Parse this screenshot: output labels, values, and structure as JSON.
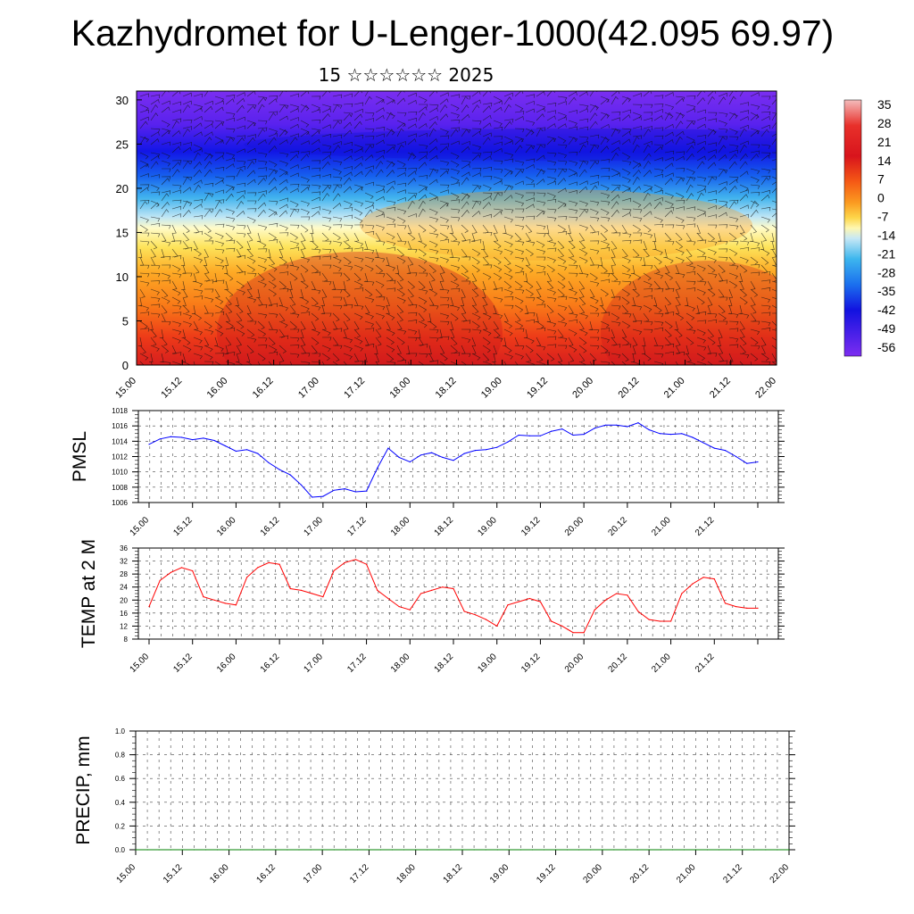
{
  "title": "Kazhydromet for U-Lenger-1000(42.095 69.97)",
  "subtitle": "15 ☆☆☆☆☆☆ 2025",
  "time_labels": [
    "15.00",
    "15.12",
    "16.00",
    "16.12",
    "17.00",
    "17.12",
    "18.00",
    "18.12",
    "19.00",
    "19.12",
    "20.00",
    "20.12",
    "21.00",
    "21.12",
    "22.00"
  ],
  "colorbar": {
    "labels": [
      "35",
      "28",
      "21",
      "14",
      "7",
      "0",
      "-7",
      "-14",
      "-21",
      "-28",
      "-35",
      "-42",
      "-49",
      "-56"
    ]
  },
  "chart_data": [
    {
      "type": "heatmap",
      "title": "",
      "xlabel": "",
      "ylabel": "",
      "x": [
        "15.00",
        "15.12",
        "16.00",
        "16.12",
        "17.00",
        "17.12",
        "18.00",
        "18.12",
        "19.00",
        "19.12",
        "20.00",
        "20.12",
        "21.00",
        "21.12",
        "22.00"
      ],
      "ylim": [
        0,
        31
      ],
      "yticks": [
        0,
        5,
        10,
        15,
        20,
        25,
        30
      ],
      "level_values": [
        0,
        5,
        10,
        15,
        20,
        25,
        30
      ],
      "temperature_profile_at_15_00": [
        30,
        24,
        14,
        -2,
        -30,
        -52,
        -60
      ],
      "temperature_profile_at_18_00": [
        24,
        18,
        8,
        -8,
        -36,
        -56,
        -60
      ],
      "temperature_profile_at_21_00": [
        29,
        21,
        10,
        -6,
        -34,
        -56,
        -60
      ],
      "colorbar_range": [
        -56,
        35
      ],
      "overlay": "wind barbs"
    },
    {
      "type": "line",
      "ylabel": "PMSL",
      "ylim": [
        1006,
        1018
      ],
      "yticks": [
        1006,
        1008,
        1010,
        1012,
        1014,
        1016,
        1018
      ],
      "grid": true,
      "x_start": "15.00",
      "x_step_hours": 3,
      "color": "#0000ff",
      "values": [
        1013.6,
        1014.3,
        1014.6,
        1014.5,
        1014.2,
        1014.4,
        1014.1,
        1013.4,
        1012.7,
        1012.9,
        1012.4,
        1011.2,
        1010.3,
        1009.6,
        1008.3,
        1006.7,
        1006.8,
        1007.6,
        1007.8,
        1007.4,
        1007.5,
        1010.5,
        1013.1,
        1011.9,
        1011.3,
        1012.2,
        1012.5,
        1011.9,
        1011.5,
        1012.4,
        1012.8,
        1012.9,
        1013.2,
        1013.9,
        1014.8,
        1014.7,
        1014.7,
        1015.3,
        1015.6,
        1014.8,
        1014.9,
        1015.7,
        1016.1,
        1016.1,
        1015.9,
        1016.4,
        1015.5,
        1015.0,
        1014.9,
        1015.0,
        1014.5,
        1013.8,
        1013.1,
        1012.8,
        1012.0,
        1011.1,
        1011.3
      ]
    },
    {
      "type": "line",
      "ylabel": "TEMP at 2 M",
      "ylim": [
        8,
        36
      ],
      "yticks": [
        8,
        12,
        16,
        20,
        24,
        28,
        32,
        36
      ],
      "grid": true,
      "x_start": "15.00",
      "x_step_hours": 3,
      "color": "#ff0000",
      "values": [
        18,
        26,
        28.5,
        30,
        29,
        21,
        20,
        19,
        18.5,
        27,
        30,
        31.5,
        31,
        23.5,
        23,
        22,
        21,
        29,
        31.5,
        32.5,
        31,
        23,
        20.5,
        18,
        17,
        22,
        23,
        24,
        23.5,
        16.5,
        15.5,
        14,
        12,
        18.5,
        19.5,
        20.5,
        19.5,
        13.5,
        12,
        10,
        10,
        17,
        20,
        22,
        21.5,
        16.5,
        14,
        13.5,
        13.5,
        22,
        25,
        27,
        26.5,
        19,
        18,
        17.5,
        17.5
      ]
    },
    {
      "type": "line",
      "ylabel": "PRECIP, mm",
      "ylim": [
        0.0,
        1.0
      ],
      "yticks": [
        "0.0",
        "0.2",
        "0.4",
        "0.6",
        "0.8",
        "1.0"
      ],
      "grid": true,
      "x_start": "15.00",
      "x_step_hours": 3,
      "color": "#008000",
      "values": [
        0,
        0,
        0,
        0,
        0,
        0,
        0,
        0,
        0,
        0,
        0,
        0,
        0,
        0,
        0,
        0,
        0,
        0,
        0,
        0,
        0,
        0,
        0,
        0,
        0,
        0,
        0,
        0,
        0,
        0,
        0,
        0,
        0,
        0,
        0,
        0,
        0,
        0,
        0,
        0,
        0,
        0,
        0,
        0,
        0,
        0,
        0,
        0,
        0,
        0,
        0,
        0,
        0,
        0,
        0,
        0,
        0
      ]
    }
  ]
}
